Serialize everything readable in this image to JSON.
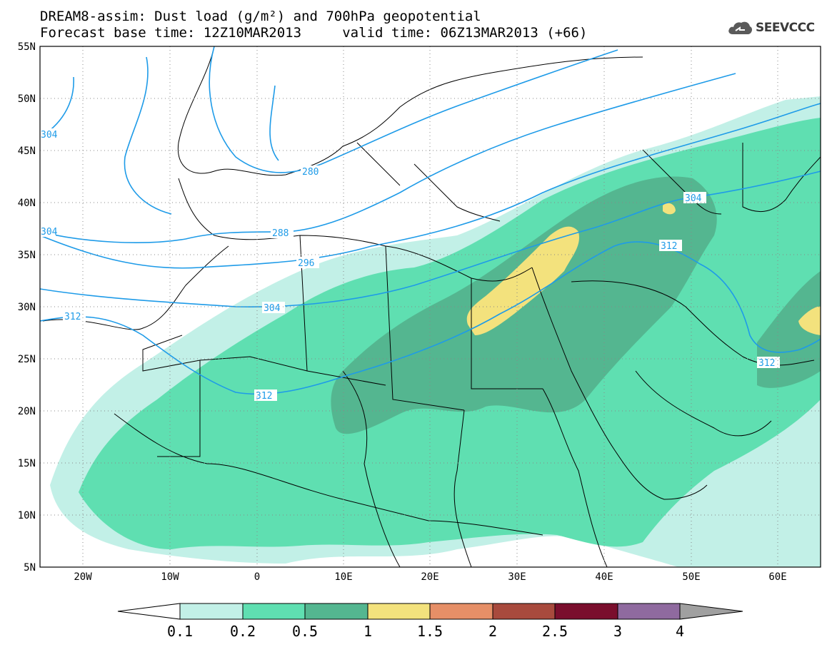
{
  "title_line1": "DREAM8-assim: Dust load (g/m²) and 700hPa geopotential",
  "title_line2": "Forecast base time: 12Z10MAR2013     valid time: 06Z13MAR2013 (+66)",
  "logo_text": "SEEVCCC",
  "logo_icon": "cloud-icon",
  "map": {
    "lat_labels": [
      "55N",
      "50N",
      "45N",
      "40N",
      "35N",
      "30N",
      "25N",
      "20N",
      "15N",
      "10N",
      "5N"
    ],
    "lon_labels": [
      "20W",
      "10W",
      "0",
      "10E",
      "20E",
      "30E",
      "40E",
      "50E",
      "60E"
    ]
  },
  "contour_labels": [
    "280",
    "288",
    "296",
    "304",
    "312",
    "304",
    "312",
    "304",
    "312",
    "304",
    "312"
  ],
  "colorbar": {
    "levels": [
      "0.1",
      "0.2",
      "0.5",
      "1",
      "1.5",
      "2",
      "2.5",
      "3",
      "4"
    ],
    "colors": [
      "#ffffff",
      "#c2f0e7",
      "#5fdfb1",
      "#54b690",
      "#f3e27d",
      "#e68f67",
      "#a84a3d",
      "#7a0e2d",
      "#8f6a9f",
      "#a0a0a0"
    ]
  },
  "dust_colors": {
    "low": "#c2f0e7",
    "mid": "#5fdfb1",
    "high": "#54b690",
    "peak": "#f3e27d"
  },
  "contour_color": "#1e9be8"
}
